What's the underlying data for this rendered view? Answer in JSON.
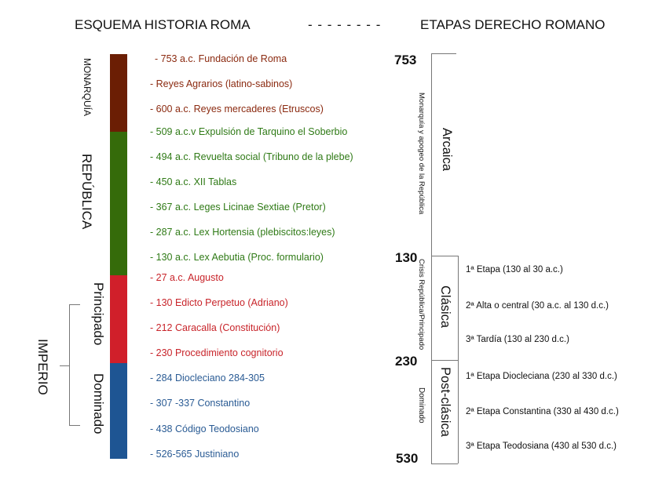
{
  "header": {
    "left_title": "ESQUEMA HISTORIA ROMA",
    "separator": "- - - - - - - -",
    "right_title": "ETAPAS DERECHO ROMANO"
  },
  "colors": {
    "monarquia": "#6b1e04",
    "republica": "#356b0a",
    "principado": "#d01f2a",
    "dominado": "#1e5593"
  },
  "periods": {
    "monarquia": "MONARQUÍA",
    "republica": "REPÚBLICA",
    "imperio": "IMPERIO",
    "principado": "Principado",
    "dominado": "Dominado"
  },
  "events": [
    {
      "text": "- 753 a.c. Fundación de Roma",
      "color": "#8b2a10"
    },
    {
      "text": "- Reyes Agrarios (latino-sabinos)",
      "color": "#8b2a10"
    },
    {
      "text": "- 600  a.c. Reyes mercaderes (Etruscos)",
      "color": "#8b2a10"
    },
    {
      "text": "- 509 a.c.v Expulsión de Tarquino el Soberbio",
      "color": "#2f7a16"
    },
    {
      "text": "- 494 a.c. Revuelta social (Tribuno de la plebe)",
      "color": "#2f7a16"
    },
    {
      "text": "- 450 a.c. XII Tablas",
      "color": "#2f7a16"
    },
    {
      "text": "- 367 a.c. Leges Licinae Sextiae (Pretor)",
      "color": "#2f7a16"
    },
    {
      "text": "- 287 a.c. Lex Hortensia (plebiscitos:leyes)",
      "color": "#2f7a16"
    },
    {
      "text": "- 130 a.c. Lex Aebutia (Proc. formulario)",
      "color": "#2f7a16"
    },
    {
      "text": "- 27 a.c. Augusto",
      "color": "#c8242a"
    },
    {
      "text": "- 130 Edicto Perpetuo (Adriano)",
      "color": "#c8242a"
    },
    {
      "text": "- 212 Caracalla (Constitución)",
      "color": "#c8242a"
    },
    {
      "text": "- 230 Procedimiento cognitorio",
      "color": "#c8242a"
    },
    {
      "text": "- 284 Diocleciano 284-305",
      "color": "#2a5b94"
    },
    {
      "text": "- 307 -337 Constantino",
      "color": "#2a5b94"
    },
    {
      "text": "- 438 Código Teodosiano",
      "color": "#2a5b94"
    },
    {
      "text": "- 526-565 Justiniano",
      "color": "#2a5b94"
    }
  ],
  "years": [
    "753",
    "130",
    "230",
    "530"
  ],
  "phases": {
    "arcaica": {
      "name": "Arcaica",
      "note": "Monarquía y apogeo de la República"
    },
    "clasica": {
      "name": "Clásica",
      "note": "Crisis República/Principado"
    },
    "postclasica": {
      "name": "Post-clásica",
      "note": "Dominado"
    }
  },
  "stages": {
    "clasica": [
      "1ª Etapa (130 al 30 a.c.)",
      "2ª Alta o central (30 a.c. al 130 d.c.)",
      "3ª Tardía (130 al 230 d.c.)"
    ],
    "postclasica": [
      "1ª Etapa Diocleciana  (230 al 330 d.c.)",
      "2ª Etapa Constantina (330 al 430 d.c.)",
      "3ª Etapa Teodosiana (430 al 530 d.c.)"
    ]
  }
}
